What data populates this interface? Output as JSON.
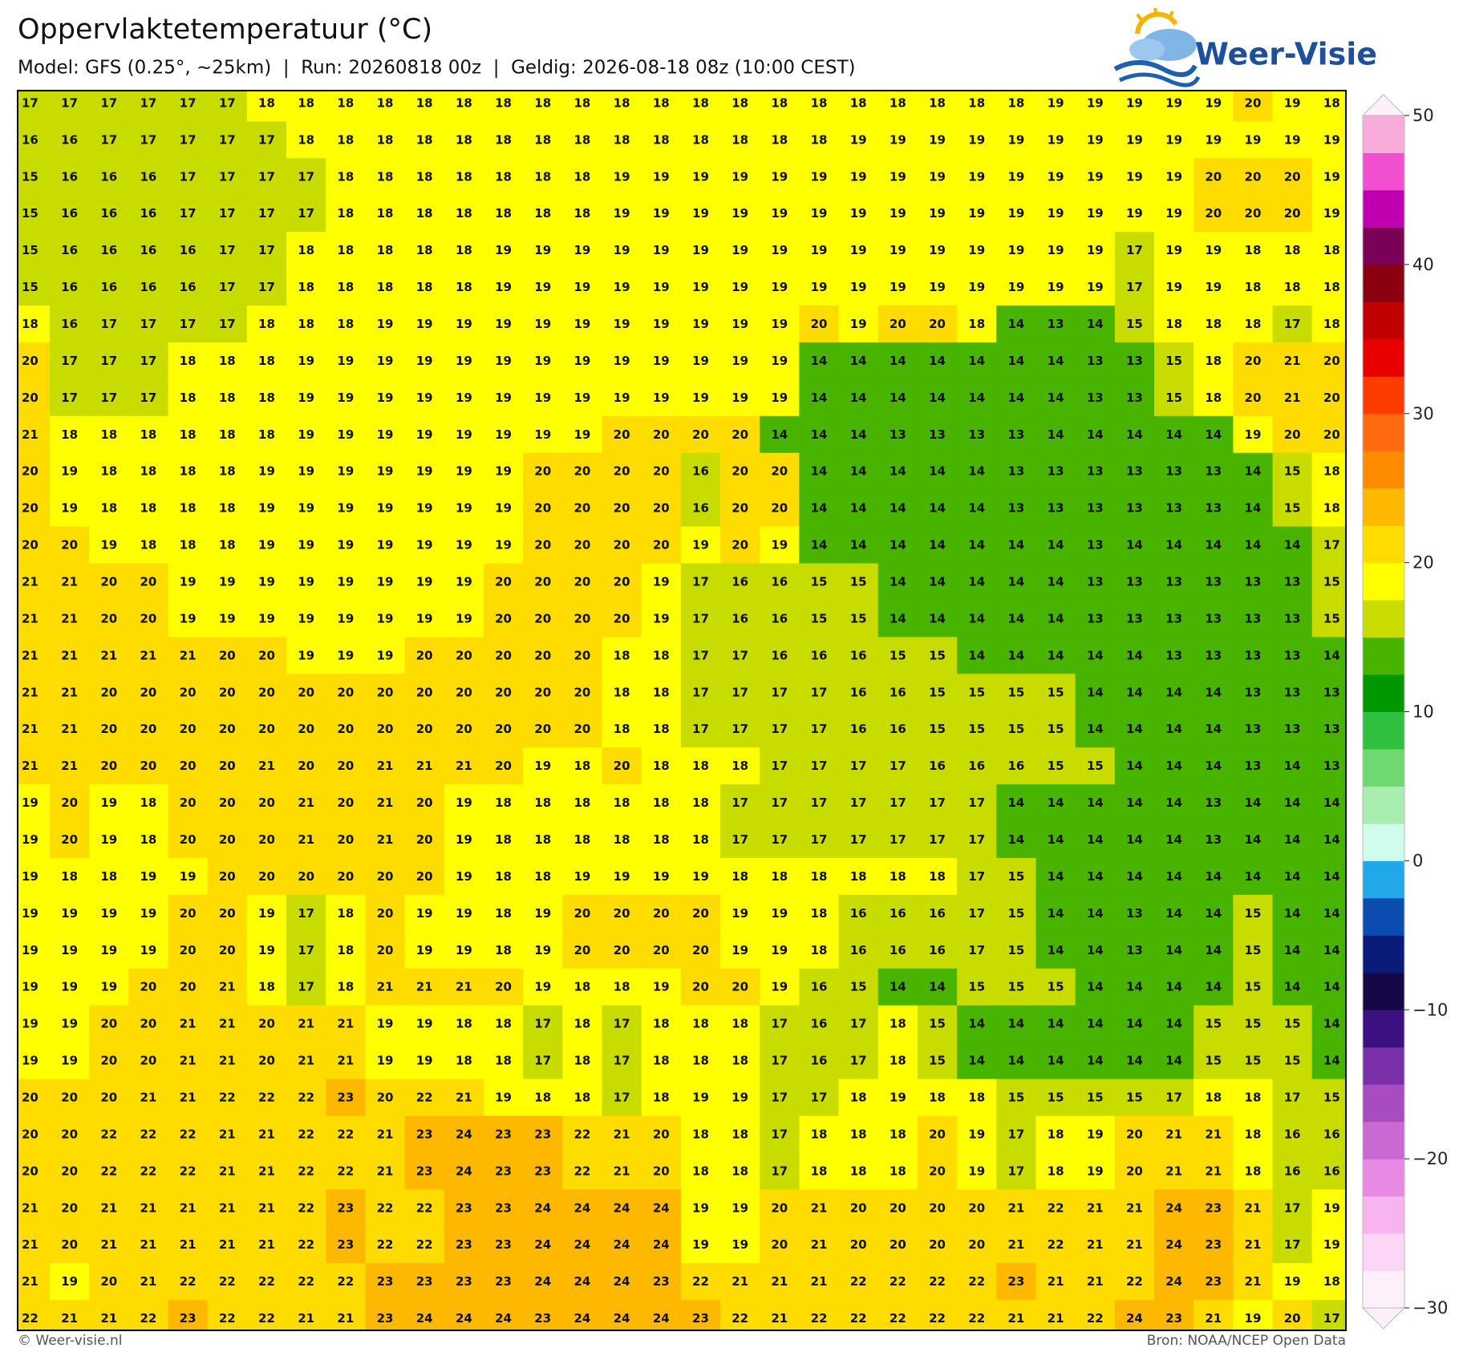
{
  "header": {
    "title": "Oppervlaktetemperatuur (°C)",
    "subtitle": "Model: GFS (0.25°, ~25km)  |  Run: 20260818 00z  |  Geldig: 2026-08-18 08z (10:00 CEST)",
    "logo": "Weer-Visie"
  },
  "map": {
    "rows": [
      [
        17,
        17,
        17,
        17,
        17,
        17,
        18,
        18,
        18,
        18,
        18,
        18,
        18,
        18,
        18,
        18,
        18,
        18,
        18,
        18,
        18,
        18,
        18,
        18,
        18,
        18,
        19,
        19,
        19,
        19,
        19,
        20,
        19,
        18
      ],
      [
        16,
        16,
        17,
        17,
        17,
        17,
        17,
        18,
        18,
        18,
        18,
        18,
        18,
        18,
        18,
        18,
        18,
        18,
        18,
        18,
        18,
        19,
        19,
        19,
        19,
        19,
        19,
        19,
        19,
        19,
        19,
        19,
        19,
        19
      ],
      [
        15,
        16,
        16,
        16,
        17,
        17,
        17,
        17,
        18,
        18,
        18,
        18,
        18,
        18,
        18,
        19,
        19,
        19,
        19,
        19,
        19,
        19,
        19,
        19,
        19,
        19,
        19,
        19,
        19,
        19,
        20,
        20,
        20,
        19
      ],
      [
        15,
        16,
        16,
        16,
        17,
        17,
        17,
        17,
        18,
        18,
        18,
        18,
        18,
        18,
        18,
        19,
        19,
        19,
        19,
        19,
        19,
        19,
        19,
        19,
        19,
        19,
        19,
        19,
        19,
        19,
        20,
        20,
        20,
        19
      ],
      [
        15,
        16,
        16,
        16,
        16,
        17,
        17,
        18,
        18,
        18,
        18,
        18,
        19,
        19,
        19,
        19,
        19,
        19,
        19,
        19,
        19,
        19,
        19,
        19,
        19,
        19,
        19,
        19,
        17,
        19,
        19,
        18,
        18,
        18
      ],
      [
        15,
        16,
        16,
        16,
        16,
        17,
        17,
        18,
        18,
        18,
        18,
        18,
        19,
        19,
        19,
        19,
        19,
        19,
        19,
        19,
        19,
        19,
        19,
        19,
        19,
        19,
        19,
        19,
        17,
        19,
        19,
        18,
        18,
        18
      ],
      [
        18,
        16,
        17,
        17,
        17,
        17,
        18,
        18,
        18,
        19,
        19,
        19,
        19,
        19,
        19,
        19,
        19,
        19,
        19,
        19,
        20,
        19,
        20,
        20,
        18,
        14,
        13,
        14,
        15,
        18,
        18,
        18,
        17,
        18
      ],
      [
        20,
        17,
        17,
        17,
        18,
        18,
        18,
        19,
        19,
        19,
        19,
        19,
        19,
        19,
        19,
        19,
        19,
        19,
        19,
        19,
        14,
        14,
        14,
        14,
        14,
        14,
        14,
        13,
        13,
        15,
        18,
        20,
        21,
        20
      ],
      [
        20,
        17,
        17,
        17,
        18,
        18,
        18,
        19,
        19,
        19,
        19,
        19,
        19,
        19,
        19,
        19,
        19,
        19,
        19,
        19,
        14,
        14,
        14,
        14,
        14,
        14,
        14,
        13,
        13,
        15,
        18,
        20,
        21,
        20
      ],
      [
        21,
        18,
        18,
        18,
        18,
        18,
        18,
        19,
        19,
        19,
        19,
        19,
        19,
        19,
        19,
        20,
        20,
        20,
        20,
        14,
        14,
        14,
        13,
        13,
        13,
        13,
        14,
        14,
        14,
        14,
        14,
        19,
        20,
        20
      ],
      [
        20,
        19,
        18,
        18,
        18,
        18,
        19,
        19,
        19,
        19,
        19,
        19,
        19,
        20,
        20,
        20,
        20,
        16,
        20,
        20,
        14,
        14,
        14,
        14,
        14,
        13,
        13,
        13,
        13,
        13,
        13,
        14,
        15,
        18
      ],
      [
        20,
        19,
        18,
        18,
        18,
        18,
        19,
        19,
        19,
        19,
        19,
        19,
        19,
        20,
        20,
        20,
        20,
        16,
        20,
        20,
        14,
        14,
        14,
        14,
        14,
        13,
        13,
        13,
        13,
        13,
        13,
        14,
        15,
        18
      ],
      [
        20,
        20,
        19,
        18,
        18,
        18,
        19,
        19,
        19,
        19,
        19,
        19,
        19,
        20,
        20,
        20,
        20,
        19,
        20,
        19,
        14,
        14,
        14,
        14,
        14,
        14,
        14,
        13,
        14,
        14,
        14,
        14,
        14,
        17
      ],
      [
        21,
        21,
        20,
        20,
        19,
        19,
        19,
        19,
        19,
        19,
        19,
        19,
        20,
        20,
        20,
        20,
        19,
        17,
        16,
        16,
        15,
        15,
        14,
        14,
        14,
        14,
        14,
        13,
        13,
        13,
        13,
        13,
        13,
        15
      ],
      [
        21,
        21,
        20,
        20,
        19,
        19,
        19,
        19,
        19,
        19,
        19,
        19,
        20,
        20,
        20,
        20,
        19,
        17,
        16,
        16,
        15,
        15,
        14,
        14,
        14,
        14,
        14,
        13,
        13,
        13,
        13,
        13,
        13,
        15
      ],
      [
        21,
        21,
        21,
        21,
        21,
        20,
        20,
        19,
        19,
        19,
        20,
        20,
        20,
        20,
        20,
        18,
        18,
        17,
        17,
        16,
        16,
        16,
        15,
        15,
        14,
        14,
        14,
        14,
        14,
        13,
        13,
        13,
        13,
        14
      ],
      [
        21,
        21,
        20,
        20,
        20,
        20,
        20,
        20,
        20,
        20,
        20,
        20,
        20,
        20,
        20,
        18,
        18,
        17,
        17,
        17,
        17,
        16,
        16,
        15,
        15,
        15,
        15,
        14,
        14,
        14,
        14,
        13,
        13,
        13
      ],
      [
        21,
        21,
        20,
        20,
        20,
        20,
        20,
        20,
        20,
        20,
        20,
        20,
        20,
        20,
        20,
        18,
        18,
        17,
        17,
        17,
        17,
        16,
        16,
        15,
        15,
        15,
        15,
        14,
        14,
        14,
        14,
        13,
        13,
        13
      ],
      [
        21,
        21,
        20,
        20,
        20,
        20,
        21,
        20,
        20,
        21,
        21,
        21,
        20,
        19,
        18,
        20,
        18,
        18,
        18,
        17,
        17,
        17,
        17,
        16,
        16,
        16,
        15,
        15,
        14,
        14,
        14,
        13,
        14,
        13
      ],
      [
        19,
        20,
        19,
        18,
        20,
        20,
        20,
        21,
        20,
        21,
        20,
        19,
        18,
        18,
        18,
        18,
        18,
        18,
        17,
        17,
        17,
        17,
        17,
        17,
        17,
        14,
        14,
        14,
        14,
        14,
        13,
        14,
        14,
        14
      ],
      [
        19,
        20,
        19,
        18,
        20,
        20,
        20,
        21,
        20,
        21,
        20,
        19,
        18,
        18,
        18,
        18,
        18,
        18,
        17,
        17,
        17,
        17,
        17,
        17,
        17,
        14,
        14,
        14,
        14,
        14,
        13,
        14,
        14,
        14
      ],
      [
        19,
        18,
        18,
        19,
        19,
        20,
        20,
        20,
        20,
        20,
        20,
        19,
        18,
        18,
        19,
        19,
        19,
        19,
        18,
        18,
        18,
        18,
        18,
        18,
        17,
        15,
        14,
        14,
        14,
        14,
        14,
        14,
        14,
        14
      ],
      [
        19,
        19,
        19,
        19,
        20,
        20,
        19,
        17,
        18,
        20,
        19,
        19,
        18,
        19,
        20,
        20,
        20,
        20,
        19,
        19,
        18,
        16,
        16,
        16,
        17,
        15,
        14,
        14,
        13,
        14,
        14,
        15,
        14,
        14
      ],
      [
        19,
        19,
        19,
        19,
        20,
        20,
        19,
        17,
        18,
        20,
        19,
        19,
        18,
        19,
        20,
        20,
        20,
        20,
        19,
        19,
        18,
        16,
        16,
        16,
        17,
        15,
        14,
        14,
        13,
        14,
        14,
        15,
        14,
        14
      ],
      [
        19,
        19,
        19,
        20,
        20,
        21,
        18,
        17,
        18,
        21,
        21,
        21,
        20,
        19,
        18,
        18,
        19,
        20,
        20,
        19,
        16,
        15,
        14,
        14,
        15,
        15,
        15,
        14,
        14,
        14,
        14,
        15,
        14,
        14
      ],
      [
        19,
        19,
        20,
        20,
        21,
        21,
        20,
        21,
        21,
        19,
        19,
        18,
        18,
        17,
        18,
        17,
        18,
        18,
        18,
        17,
        16,
        17,
        18,
        15,
        14,
        14,
        14,
        14,
        14,
        14,
        15,
        15,
        15,
        14
      ],
      [
        19,
        19,
        20,
        20,
        21,
        21,
        20,
        21,
        21,
        19,
        19,
        18,
        18,
        17,
        18,
        17,
        18,
        18,
        18,
        17,
        16,
        17,
        18,
        15,
        14,
        14,
        14,
        14,
        14,
        14,
        15,
        15,
        15,
        14
      ],
      [
        20,
        20,
        20,
        21,
        21,
        22,
        22,
        22,
        23,
        20,
        22,
        21,
        19,
        18,
        18,
        17,
        18,
        19,
        19,
        17,
        17,
        18,
        19,
        18,
        18,
        15,
        15,
        15,
        15,
        17,
        18,
        18,
        17,
        15
      ],
      [
        20,
        20,
        22,
        22,
        22,
        21,
        21,
        22,
        22,
        21,
        23,
        24,
        23,
        23,
        22,
        21,
        20,
        18,
        18,
        17,
        18,
        18,
        18,
        20,
        19,
        17,
        18,
        19,
        20,
        21,
        21,
        18,
        16,
        16
      ],
      [
        20,
        20,
        22,
        22,
        22,
        21,
        21,
        22,
        22,
        21,
        23,
        24,
        23,
        23,
        22,
        21,
        20,
        18,
        18,
        17,
        18,
        18,
        18,
        20,
        19,
        17,
        18,
        19,
        20,
        21,
        21,
        18,
        16,
        16
      ],
      [
        21,
        20,
        21,
        21,
        21,
        21,
        21,
        22,
        23,
        22,
        22,
        23,
        23,
        24,
        24,
        24,
        24,
        19,
        19,
        20,
        21,
        20,
        20,
        20,
        20,
        21,
        22,
        21,
        21,
        24,
        23,
        21,
        17,
        19
      ],
      [
        21,
        20,
        21,
        21,
        21,
        21,
        21,
        22,
        23,
        22,
        22,
        23,
        23,
        24,
        24,
        24,
        24,
        19,
        19,
        20,
        21,
        20,
        20,
        20,
        20,
        21,
        22,
        21,
        21,
        24,
        23,
        21,
        17,
        19
      ],
      [
        21,
        19,
        20,
        21,
        22,
        22,
        22,
        22,
        22,
        23,
        23,
        23,
        23,
        24,
        24,
        24,
        23,
        22,
        21,
        21,
        21,
        22,
        22,
        22,
        22,
        23,
        21,
        21,
        22,
        24,
        23,
        21,
        19,
        18
      ],
      [
        22,
        21,
        21,
        22,
        23,
        22,
        22,
        21,
        21,
        23,
        24,
        24,
        24,
        23,
        24,
        24,
        24,
        23,
        22,
        21,
        22,
        22,
        22,
        22,
        22,
        21,
        21,
        22,
        24,
        23,
        21,
        19,
        20,
        17
      ]
    ]
  },
  "colorbar": {
    "lim": [
      -30,
      50
    ],
    "ticks": [
      {
        "value": -30,
        "label": "−30"
      },
      {
        "value": -20,
        "label": "−20"
      },
      {
        "value": -10,
        "label": "−10"
      },
      0,
      10,
      20,
      30,
      40,
      50
    ],
    "colors": [
      "#fdf0fb",
      "#fcd6f6",
      "#f8b4ee",
      "#e88ae4",
      "#cc68d4",
      "#a84cc0",
      "#7a30a8",
      "#3c1080",
      "#160846",
      "#0a1a78",
      "#0a4cb0",
      "#20a8e8",
      "#d0fcec",
      "#a8ecb0",
      "#70d870",
      "#30c040",
      "#009800",
      "#48b400",
      "#c8dc00",
      "#ffff00",
      "#ffdc00",
      "#ffb800",
      "#ff8c00",
      "#ff6a10",
      "#ff3c00",
      "#e80000",
      "#c00000",
      "#8a0010",
      "#7a0058",
      "#c000b0",
      "#f050d0",
      "#f8acdc"
    ]
  },
  "footer": {
    "left": "© Weer-visie.nl",
    "right": "Bron: NOAA/NCEP Open Data"
  }
}
